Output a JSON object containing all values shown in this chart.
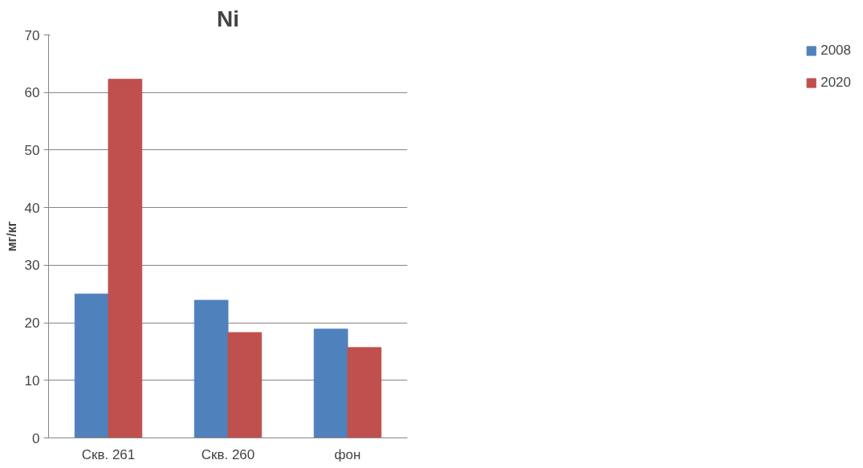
{
  "chart_data": {
    "type": "bar",
    "title": "Ni",
    "ylabel": "мг/кг",
    "categories": [
      "Скв. 261",
      "Скв. 260",
      "фон"
    ],
    "series": [
      {
        "name": "2008",
        "color": "#4f81bd",
        "values": [
          25.0,
          23.9,
          18.9
        ]
      },
      {
        "name": "2020",
        "color": "#c0504d",
        "values": [
          62.3,
          18.3,
          15.7
        ]
      }
    ],
    "ylim": [
      0,
      70
    ],
    "yticks": [
      0,
      10,
      20,
      30,
      40,
      50,
      60,
      70
    ],
    "grid": "y",
    "legend": "right"
  }
}
